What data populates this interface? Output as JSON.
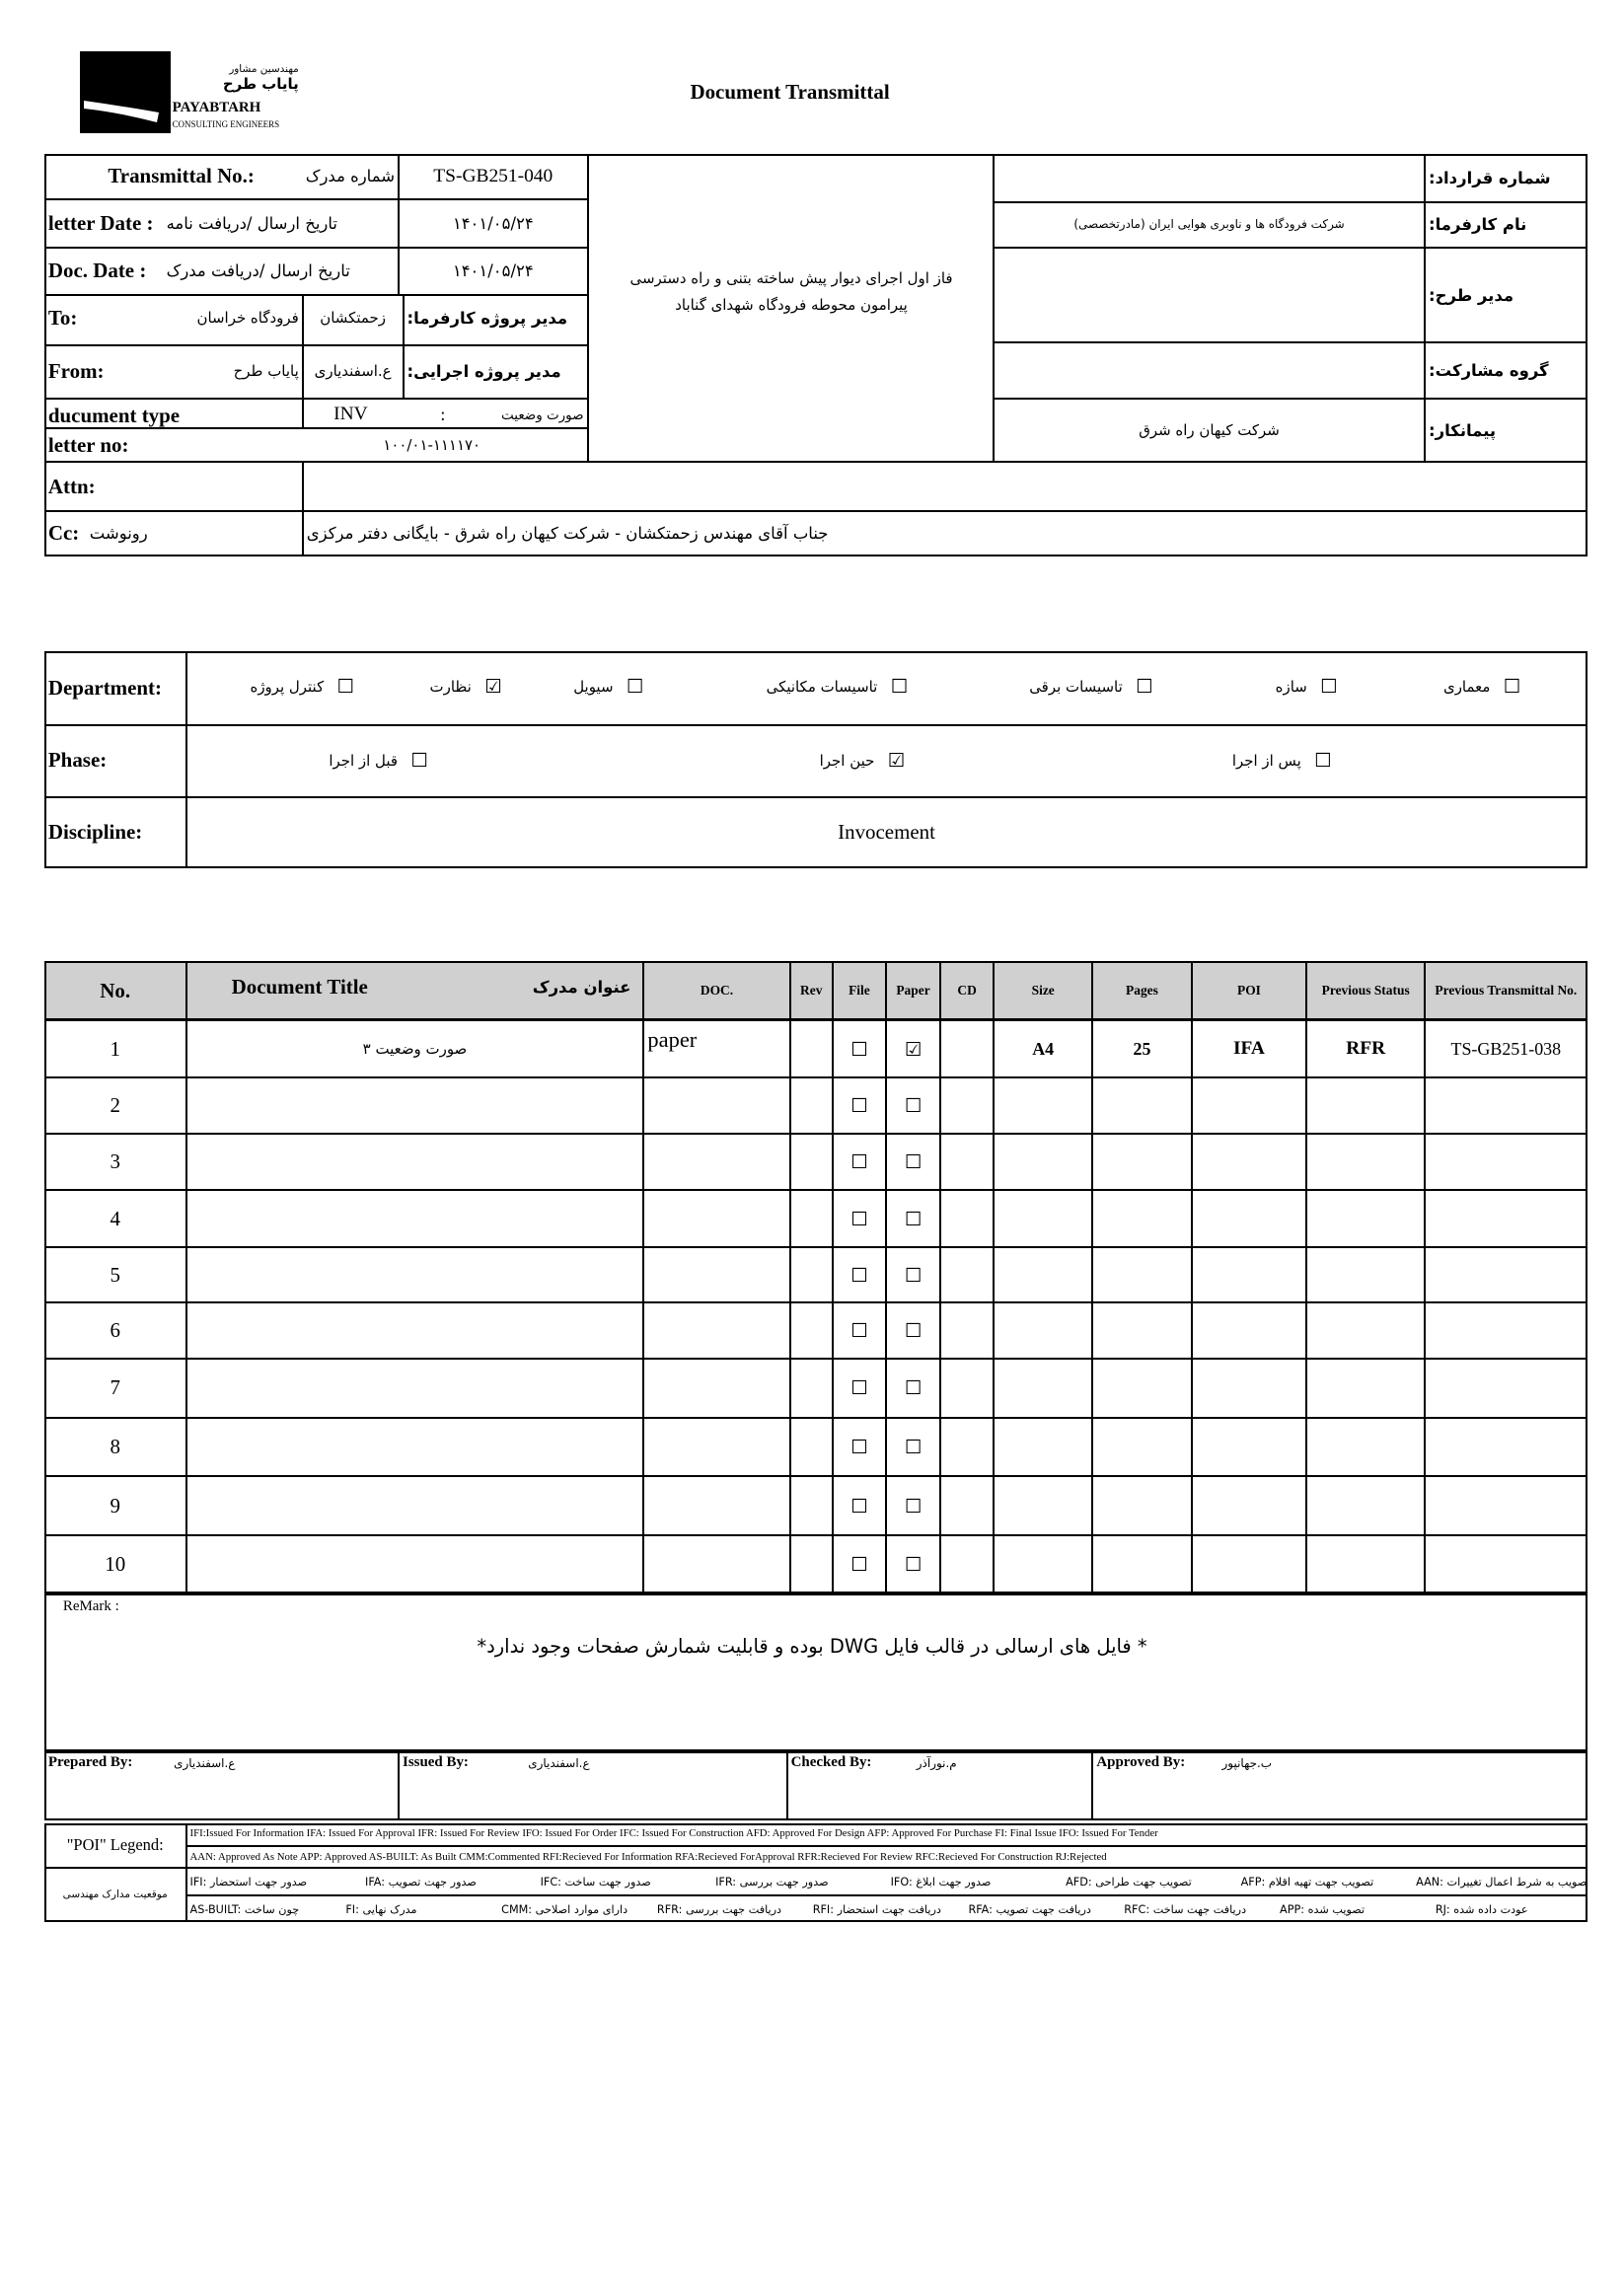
{
  "header": {
    "logo_fa_small": "مهندسین مشاور",
    "logo_fa": "پایاب طرح",
    "logo_en": "PAYABTARH",
    "logo_sub": "CONSULTING ENGINEERS",
    "title": "Document Transmittal"
  },
  "info": {
    "transmittal_no_label": "Transmittal No.:",
    "transmittal_no_label_fa": "شماره مدرک",
    "transmittal_no": "TS-GB251-040",
    "letter_date_label": "letter Date :",
    "letter_date_label_fa": "تاریخ ارسال /دریافت نامه",
    "letter_date": "۱۴۰۱/۰۵/۲۴",
    "doc_date_label": "Doc. Date :",
    "doc_date_label_fa": "تاریخ ارسال /دریافت مدرک",
    "doc_date": "۱۴۰۱/۰۵/۲۴",
    "to_label": "To:",
    "to_value": "فرودگاه خراسان",
    "client_pm": "زحمتکشان",
    "client_pm_label": "مدیر پروژه کارفرما:",
    "from_label": "From:",
    "from_value": "پایاب طرح",
    "exec_pm": "ع.اسفندیاری",
    "exec_pm_label": "مدیر پروژه اجرایی:",
    "doc_type_label": "ducument type",
    "doc_type": "INV",
    "doc_type_sep": ":",
    "doc_type_fa": "صورت وضعیت",
    "letter_no_label": "letter no:",
    "letter_no": "۱۰۰/۰۱-۱۱۱۱۷۰",
    "project": "فاز اول اجرای دیوار پیش ساخته بتنی و راه دسترسی پیرامون محوطه فرودگاه شهدای گناباد",
    "contract_no_label": "شماره قرارداد:",
    "client_label": "نام کارفرما:",
    "client": "شرکت فرودگاه ها و ناوبری هوایی ایران (مادرتخصصی)",
    "design_manager_label": "مدیر طرح:",
    "partnership_label": "گروه مشارکت:",
    "contractor_label": "پیمانکار:",
    "contractor": "شرکت کیهان راه شرق",
    "attn_label": "Attn:",
    "cc_label": "Cc:",
    "cc_label_fa": "رونوشت",
    "cc": "جناب آقای مهندس زحمتکشان - شرکت کیهان راه شرق - بایگانی دفتر مرکزی"
  },
  "classification": {
    "department_label": "Department:",
    "departments": [
      {
        "label": "معماری",
        "checked": false
      },
      {
        "label": "سازه",
        "checked": false
      },
      {
        "label": "تاسیسات برقی",
        "checked": false
      },
      {
        "label": "تاسیسات مکانیکی",
        "checked": false
      },
      {
        "label": "سیویل",
        "checked": false
      },
      {
        "label": "نظارت",
        "checked": true
      },
      {
        "label": "کنترل پروژه",
        "checked": false
      }
    ],
    "phase_label": "Phase:",
    "phases": [
      {
        "label": "پس از اجرا",
        "checked": false
      },
      {
        "label": "حین اجرا",
        "checked": true
      },
      {
        "label": "قبل از اجرا",
        "checked": false
      }
    ],
    "discipline_label": "Discipline:",
    "discipline": "Invocement"
  },
  "table": {
    "headers": [
      "No.",
      "Document Title",
      "عنوان مدرک",
      "DOC.",
      "Rev",
      "File",
      "Paper",
      "CD",
      "Size",
      "Pages",
      "POI",
      "Previous Status",
      "Previous Transmittal No."
    ],
    "rows": [
      {
        "no": 1,
        "title": "صورت وضعیت ۳",
        "doc": "paper",
        "file": false,
        "paper": true,
        "size": "A4",
        "pages": 25,
        "poi": "IFA",
        "prev_status": "RFR",
        "prev_no": "TS-GB251-038"
      },
      {
        "no": 2,
        "file": false,
        "paper": false
      },
      {
        "no": 3,
        "file": false,
        "paper": false
      },
      {
        "no": 4,
        "file": false,
        "paper": false
      },
      {
        "no": 5,
        "file": false,
        "paper": false
      },
      {
        "no": 6,
        "file": false,
        "paper": false
      },
      {
        "no": 7,
        "file": false,
        "paper": false
      },
      {
        "no": 8,
        "file": false,
        "paper": false
      },
      {
        "no": 9,
        "file": false,
        "paper": false
      },
      {
        "no": 10,
        "file": false,
        "paper": false
      }
    ]
  },
  "remark": {
    "label": "ReMark :",
    "text": "* فایل های ارسالی در قالب فایل DWG بوده و قابلیت شمارش صفحات وجود ندارد*"
  },
  "signatures": [
    {
      "label": "Prepared By:",
      "name": "ع.اسفندیاری"
    },
    {
      "label": "Issued By:",
      "name": "ع.اسفندیاری"
    },
    {
      "label": "Checked By:",
      "name": "م.نورآذر"
    },
    {
      "label": "Approved By:",
      "name": "ب.جهانپور"
    }
  ],
  "legend": {
    "label": "\"POI\" Legend:",
    "line1": "IFI:Issued For Information IFA: Issued For Approval IFR: Issued For Review IFO: Issued For Order IFC: Issued For Construction AFD: Approved For Design AFP: Approved For Purchase FI: Final Issue IFO: Issued For Tender",
    "line2": "AAN: Approved As Note APP: Approved AS-BUILT: As Built CMM:Commented RFI:Recieved For Information RFA:Recieved ForApproval RFR:Recieved For Review RFC:Recieved For Construction RJ:Rejected",
    "fa_label": "موقعیت مدارک مهندسی",
    "fa_line1": [
      "IFI: صدور جهت استحضار",
      "IFA: صدور جهت تصویب",
      "IFC: صدور جهت ساخت",
      "IFR: صدور جهت بررسی",
      "IFO: صدور جهت ابلاغ",
      "AFD: تصویب جهت طراحی",
      "AFP: تصویب جهت تهیه اقلام",
      "AAN: تصویب به شرط اعمال تغییرات"
    ],
    "fa_line2": [
      "AS-BUILT: چون ساخت",
      "FI: مدرک نهایی",
      "CMM: دارای موارد اصلاحی",
      "RFR: دریافت جهت بررسی",
      "RFI: دریافت جهت استحضار",
      "RFA: دریافت جهت تصویب",
      "RFC: دریافت جهت ساخت",
      "APP: تصویب شده",
      "RJ: عودت داده شده"
    ]
  }
}
